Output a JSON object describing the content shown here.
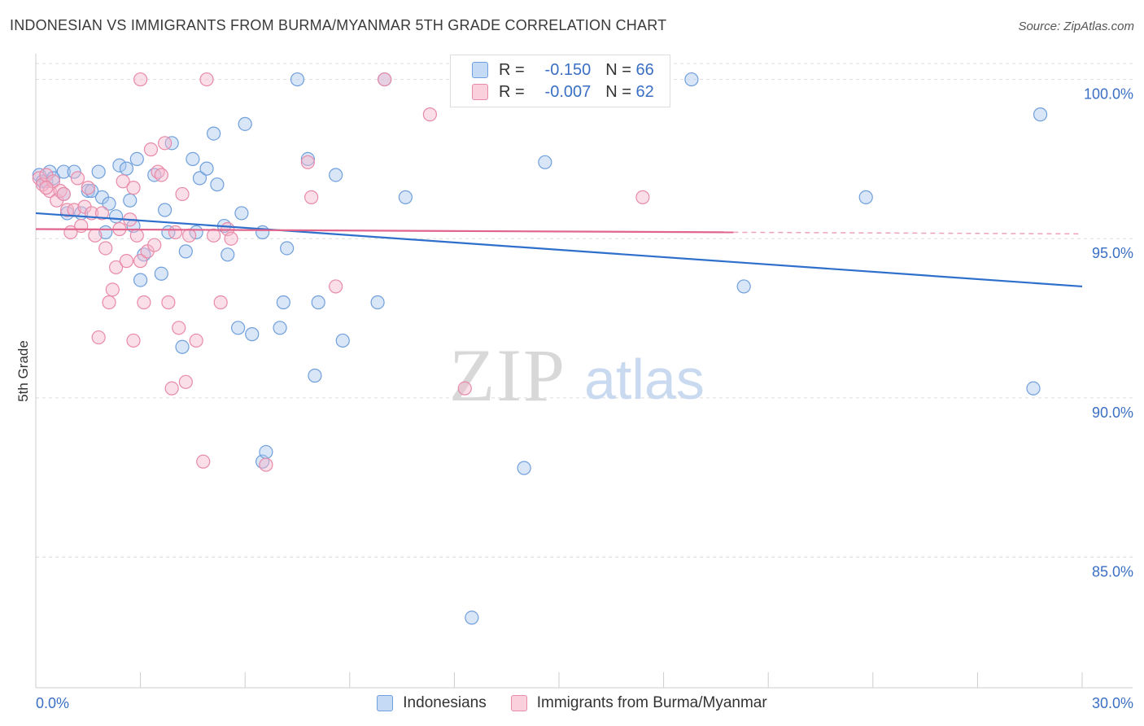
{
  "title": "INDONESIAN VS IMMIGRANTS FROM BURMA/MYANMAR 5TH GRADE CORRELATION CHART",
  "source": "Source: ZipAtlas.com",
  "watermark": {
    "zip": "ZIP",
    "atlas": "atlas"
  },
  "legend": {
    "rows": [
      {
        "r_label": "R =",
        "r_value": "-0.150",
        "n_label": "N =",
        "n_value": "66"
      },
      {
        "r_label": "R =",
        "r_value": "-0.007",
        "n_label": "N =",
        "n_value": "62"
      }
    ]
  },
  "colors": {
    "blue_fill": "#aac8ee",
    "blue_stroke": "#6f9fdc",
    "blue_line": "#2f6fcc",
    "pink_fill": "#f7b9cc",
    "pink_stroke": "#e88aa8",
    "pink_line": "#e0648c",
    "grid": "#dddddd",
    "tick_text": "#3a6fc4"
  },
  "chart_data": {
    "type": "scatter",
    "title": "INDONESIAN VS IMMIGRANTS FROM BURMA/MYANMAR 5TH GRADE CORRELATION CHART",
    "xlabel": "",
    "ylabel": "5th Grade",
    "xlim": [
      0,
      30
    ],
    "ylim": [
      80.9,
      100.5
    ],
    "x_tick_labels": [
      "0.0%",
      "30.0%"
    ],
    "y_ticks": [
      100,
      95,
      90,
      85
    ],
    "y_tick_labels": [
      "100.0%",
      "95.0%",
      "90.0%",
      "85.0%"
    ],
    "grid": "horizontal dashed",
    "legend_position": "bottom-center",
    "series": [
      {
        "name": "Indonesians",
        "color": "#6f9fdc",
        "R": -0.15,
        "N": 66,
        "trend": {
          "x": [
            0,
            30
          ],
          "y": [
            95.8,
            93.5
          ]
        },
        "points": [
          [
            0.1,
            97.0
          ],
          [
            0.2,
            96.8
          ],
          [
            0.3,
            96.8
          ],
          [
            0.4,
            97.1
          ],
          [
            0.5,
            96.9
          ],
          [
            0.8,
            97.1
          ],
          [
            0.8,
            96.4
          ],
          [
            0.9,
            95.8
          ],
          [
            1.1,
            97.1
          ],
          [
            1.3,
            95.8
          ],
          [
            1.5,
            96.5
          ],
          [
            1.8,
            97.1
          ],
          [
            1.9,
            96.3
          ],
          [
            2.0,
            95.2
          ],
          [
            2.1,
            96.1
          ],
          [
            2.3,
            95.7
          ],
          [
            2.4,
            97.3
          ],
          [
            2.6,
            97.2
          ],
          [
            2.7,
            96.2
          ],
          [
            2.8,
            95.4
          ],
          [
            2.9,
            97.5
          ],
          [
            3.0,
            93.7
          ],
          [
            3.1,
            94.5
          ],
          [
            3.4,
            97.0
          ],
          [
            3.6,
            93.9
          ],
          [
            3.7,
            95.9
          ],
          [
            3.8,
            95.2
          ],
          [
            3.9,
            98.0
          ],
          [
            4.2,
            91.6
          ],
          [
            4.3,
            94.6
          ],
          [
            4.5,
            97.5
          ],
          [
            4.6,
            95.2
          ],
          [
            4.7,
            96.9
          ],
          [
            4.9,
            97.2
          ],
          [
            5.1,
            98.3
          ],
          [
            5.2,
            96.7
          ],
          [
            5.4,
            95.4
          ],
          [
            5.5,
            94.5
          ],
          [
            5.8,
            92.2
          ],
          [
            5.9,
            95.8
          ],
          [
            6.0,
            98.6
          ],
          [
            6.2,
            92.0
          ],
          [
            6.5,
            95.2
          ],
          [
            6.5,
            88.0
          ],
          [
            6.6,
            88.3
          ],
          [
            7.0,
            92.2
          ],
          [
            7.1,
            93.0
          ],
          [
            7.2,
            94.7
          ],
          [
            7.5,
            100.0
          ],
          [
            7.8,
            97.5
          ],
          [
            8.0,
            90.7
          ],
          [
            8.1,
            93.0
          ],
          [
            8.6,
            97.0
          ],
          [
            8.8,
            91.8
          ],
          [
            9.8,
            93.0
          ],
          [
            10.0,
            100.0
          ],
          [
            10.6,
            96.3
          ],
          [
            12.5,
            83.1
          ],
          [
            14.0,
            87.8
          ],
          [
            14.6,
            97.4
          ],
          [
            18.8,
            100.0
          ],
          [
            20.3,
            93.5
          ],
          [
            23.8,
            96.3
          ],
          [
            28.6,
            90.3
          ],
          [
            28.8,
            98.9
          ],
          [
            1.6,
            96.5
          ]
        ]
      },
      {
        "name": "Immigrants from Burma/Myanmar",
        "color": "#e88aa8",
        "R": -0.007,
        "N": 62,
        "trend": {
          "x": [
            0,
            20
          ],
          "y": [
            95.3,
            95.2
          ]
        },
        "points": [
          [
            0.1,
            96.9
          ],
          [
            0.2,
            96.7
          ],
          [
            0.3,
            97.0
          ],
          [
            0.4,
            96.5
          ],
          [
            0.5,
            96.8
          ],
          [
            0.6,
            96.2
          ],
          [
            0.7,
            96.5
          ],
          [
            0.8,
            96.4
          ],
          [
            0.9,
            95.9
          ],
          [
            1.0,
            95.2
          ],
          [
            1.1,
            95.9
          ],
          [
            1.2,
            96.9
          ],
          [
            1.3,
            95.4
          ],
          [
            1.4,
            96.0
          ],
          [
            1.5,
            96.6
          ],
          [
            1.6,
            95.8
          ],
          [
            1.7,
            95.1
          ],
          [
            1.8,
            91.9
          ],
          [
            1.9,
            95.8
          ],
          [
            2.0,
            94.7
          ],
          [
            2.1,
            93.0
          ],
          [
            2.2,
            93.4
          ],
          [
            2.3,
            94.1
          ],
          [
            2.4,
            95.3
          ],
          [
            2.5,
            96.8
          ],
          [
            2.6,
            94.3
          ],
          [
            2.7,
            95.6
          ],
          [
            2.8,
            91.8
          ],
          [
            2.8,
            96.6
          ],
          [
            2.9,
            95.1
          ],
          [
            3.0,
            94.3
          ],
          [
            3.0,
            100.0
          ],
          [
            3.1,
            93.0
          ],
          [
            3.2,
            94.6
          ],
          [
            3.3,
            97.8
          ],
          [
            3.4,
            94.8
          ],
          [
            3.5,
            97.1
          ],
          [
            3.6,
            97.0
          ],
          [
            3.7,
            98.0
          ],
          [
            3.8,
            93.0
          ],
          [
            3.9,
            90.3
          ],
          [
            4.0,
            95.2
          ],
          [
            4.1,
            92.2
          ],
          [
            4.2,
            96.4
          ],
          [
            4.3,
            90.5
          ],
          [
            4.4,
            95.1
          ],
          [
            4.6,
            91.8
          ],
          [
            4.8,
            88.0
          ],
          [
            4.9,
            100.0
          ],
          [
            5.1,
            95.1
          ],
          [
            5.3,
            93.0
          ],
          [
            5.5,
            95.3
          ],
          [
            5.6,
            95.0
          ],
          [
            6.6,
            87.9
          ],
          [
            7.8,
            97.4
          ],
          [
            7.9,
            96.3
          ],
          [
            8.6,
            93.5
          ],
          [
            10.0,
            100.0
          ],
          [
            11.3,
            98.9
          ],
          [
            12.3,
            90.3
          ],
          [
            17.4,
            96.3
          ],
          [
            0.3,
            96.6
          ]
        ]
      }
    ]
  }
}
